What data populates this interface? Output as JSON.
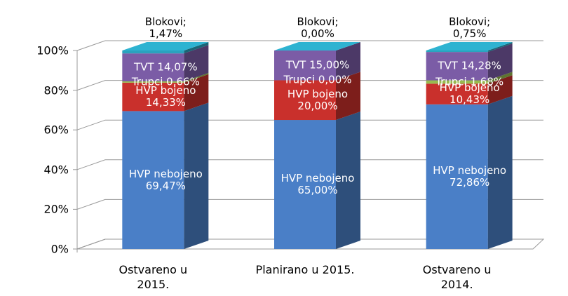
{
  "chart_data": {
    "type": "bar3d_stacked",
    "categories": [
      "Ostvareno u\n2015.",
      "Planirano u 2015.",
      "Ostvareno u\n2014."
    ],
    "series": [
      {
        "name": "HVP nebojeno",
        "color": "#4a7fc7",
        "values": [
          69.47,
          65.0,
          72.86
        ],
        "value_labels": [
          "HVP nebojeno\n69,47%",
          "HVP nebojeno\n65,00%",
          "HVP nebojeno\n72,86%"
        ]
      },
      {
        "name": "HVP bojeno",
        "color": "#c9302c",
        "values": [
          14.33,
          20.0,
          10.43
        ],
        "value_labels": [
          "HVP bojeno\n14,33%",
          "HVP bojeno\n20,00%",
          "HVP bojeno\n10,43%"
        ]
      },
      {
        "name": "Trupci",
        "color": "#98bb4f",
        "values": [
          0.66,
          0.0,
          1.68
        ],
        "value_labels": [
          "Trupci 0,66%",
          "Trupci 0,00%",
          "Trupci 1,68%"
        ]
      },
      {
        "name": "TVT",
        "color": "#7b5ca6",
        "values": [
          14.07,
          15.0,
          14.28
        ],
        "value_labels": [
          "TVT 14,07%",
          "TVT 15,00%",
          "TVT 14,28%"
        ]
      },
      {
        "name": "Blokovi",
        "color": "#2aa3be",
        "values": [
          1.47,
          0.0,
          0.75
        ],
        "value_labels": [
          "Blokovi;\n1,47%",
          "Blokovi;\n0,00%",
          "Blokovi;\n0,75%"
        ]
      }
    ],
    "ylim": [
      0,
      100
    ],
    "yticks": [
      {
        "value": 0,
        "label": "0%"
      },
      {
        "value": 20,
        "label": "20%"
      },
      {
        "value": 40,
        "label": "40%"
      },
      {
        "value": 60,
        "label": "60%"
      },
      {
        "value": 80,
        "label": "80%"
      },
      {
        "value": 100,
        "label": "100%"
      }
    ],
    "grid": true
  }
}
